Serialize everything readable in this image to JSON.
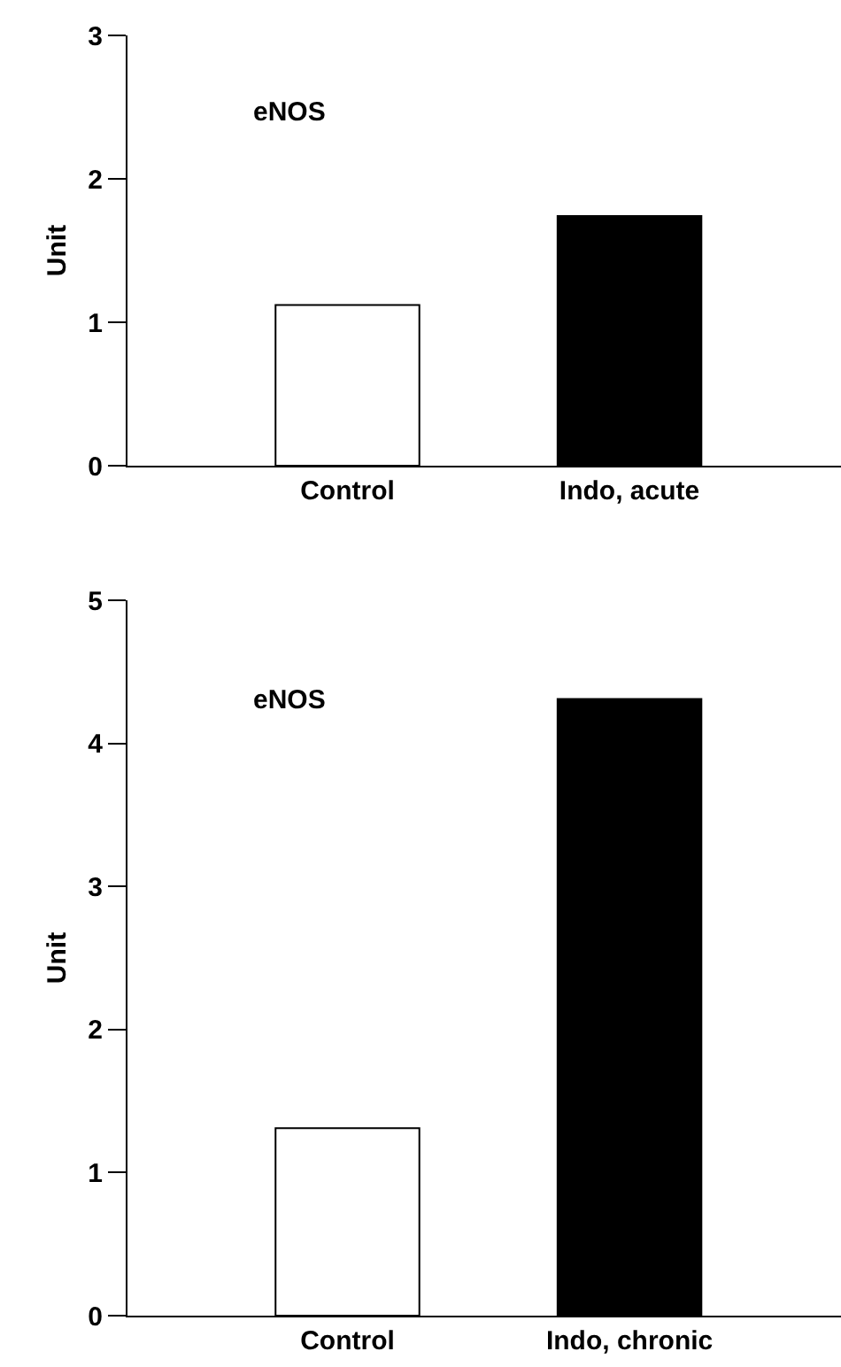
{
  "chart_data": [
    {
      "type": "bar",
      "ylabel": "Unit",
      "annotations": [
        "eNOS"
      ],
      "categories": [
        "Control",
        "Indo, acute"
      ],
      "values": [
        1.12,
        1.74
      ],
      "colors": [
        "#ffffff",
        "#000000"
      ],
      "ylim": [
        0,
        3
      ],
      "yticks": [
        0,
        1,
        2,
        3
      ]
    },
    {
      "type": "bar",
      "ylabel": "Unit",
      "annotations": [
        "eNOS"
      ],
      "categories": [
        "Control",
        "Indo, chronic"
      ],
      "values": [
        1.31,
        4.31
      ],
      "colors": [
        "#ffffff",
        "#000000"
      ],
      "ylim": [
        0,
        5
      ],
      "yticks": [
        0,
        1,
        2,
        3,
        4,
        5
      ]
    }
  ]
}
